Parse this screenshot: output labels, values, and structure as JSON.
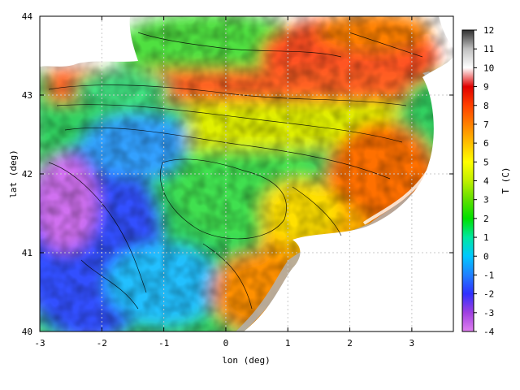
{
  "chart_data": {
    "type": "heatmap",
    "title": "",
    "xlabel": "lon (deg)",
    "ylabel": "lat (deg)",
    "xlim": [
      -3,
      3.67
    ],
    "ylim": [
      40,
      44
    ],
    "xticks": [
      -3,
      -2,
      -1,
      0,
      1,
      2,
      3
    ],
    "yticks": [
      40,
      41,
      42,
      43,
      44
    ],
    "grid": true,
    "contours": true,
    "masked_color": "#ffffff",
    "colorbar": {
      "label": "T (C)",
      "min": -4,
      "max": 12,
      "ticks": [
        -4,
        -3,
        -2,
        -1,
        0,
        1,
        2,
        3,
        4,
        5,
        6,
        7,
        8,
        9,
        10,
        11,
        12
      ],
      "colors": [
        "#e080f0",
        "#a040e0",
        "#3030ff",
        "#2080ff",
        "#00c8ff",
        "#00e8a0",
        "#00e000",
        "#60e000",
        "#c0f000",
        "#ffff00",
        "#ffc000",
        "#ff8000",
        "#ff4000",
        "#e00000",
        "#ffffff",
        "#c0c0c0",
        "#303030"
      ]
    },
    "field_description": "sea surface temperature; warm (7-10 C) coastal band along north and east, cold (-2 to 2 C) interior basin in west"
  }
}
